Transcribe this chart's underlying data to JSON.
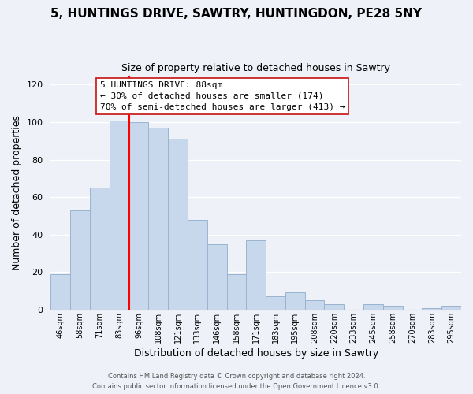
{
  "title": "5, HUNTINGS DRIVE, SAWTRY, HUNTINGDON, PE28 5NY",
  "subtitle": "Size of property relative to detached houses in Sawtry",
  "xlabel": "Distribution of detached houses by size in Sawtry",
  "ylabel": "Number of detached properties",
  "bar_color": "#c8d8ec",
  "bar_edge_color": "#9ab4d0",
  "background_color": "#eef2f8",
  "grid_color": "#ffffff",
  "categories": [
    "46sqm",
    "58sqm",
    "71sqm",
    "83sqm",
    "96sqm",
    "108sqm",
    "121sqm",
    "133sqm",
    "146sqm",
    "158sqm",
    "171sqm",
    "183sqm",
    "195sqm",
    "208sqm",
    "220sqm",
    "233sqm",
    "245sqm",
    "258sqm",
    "270sqm",
    "283sqm",
    "295sqm"
  ],
  "values": [
    19,
    53,
    65,
    101,
    100,
    97,
    91,
    48,
    35,
    19,
    37,
    7,
    9,
    5,
    3,
    0,
    3,
    2,
    0,
    1,
    2
  ],
  "ylim": [
    0,
    125
  ],
  "yticks": [
    0,
    20,
    40,
    60,
    80,
    100,
    120
  ],
  "vline_bar_index": 4,
  "annotation_text_line1": "5 HUNTINGS DRIVE: 88sqm",
  "annotation_text_line2": "← 30% of detached houses are smaller (174)",
  "annotation_text_line3": "70% of semi-detached houses are larger (413) →",
  "footer_line1": "Contains HM Land Registry data © Crown copyright and database right 2024.",
  "footer_line2": "Contains public sector information licensed under the Open Government Licence v3.0."
}
